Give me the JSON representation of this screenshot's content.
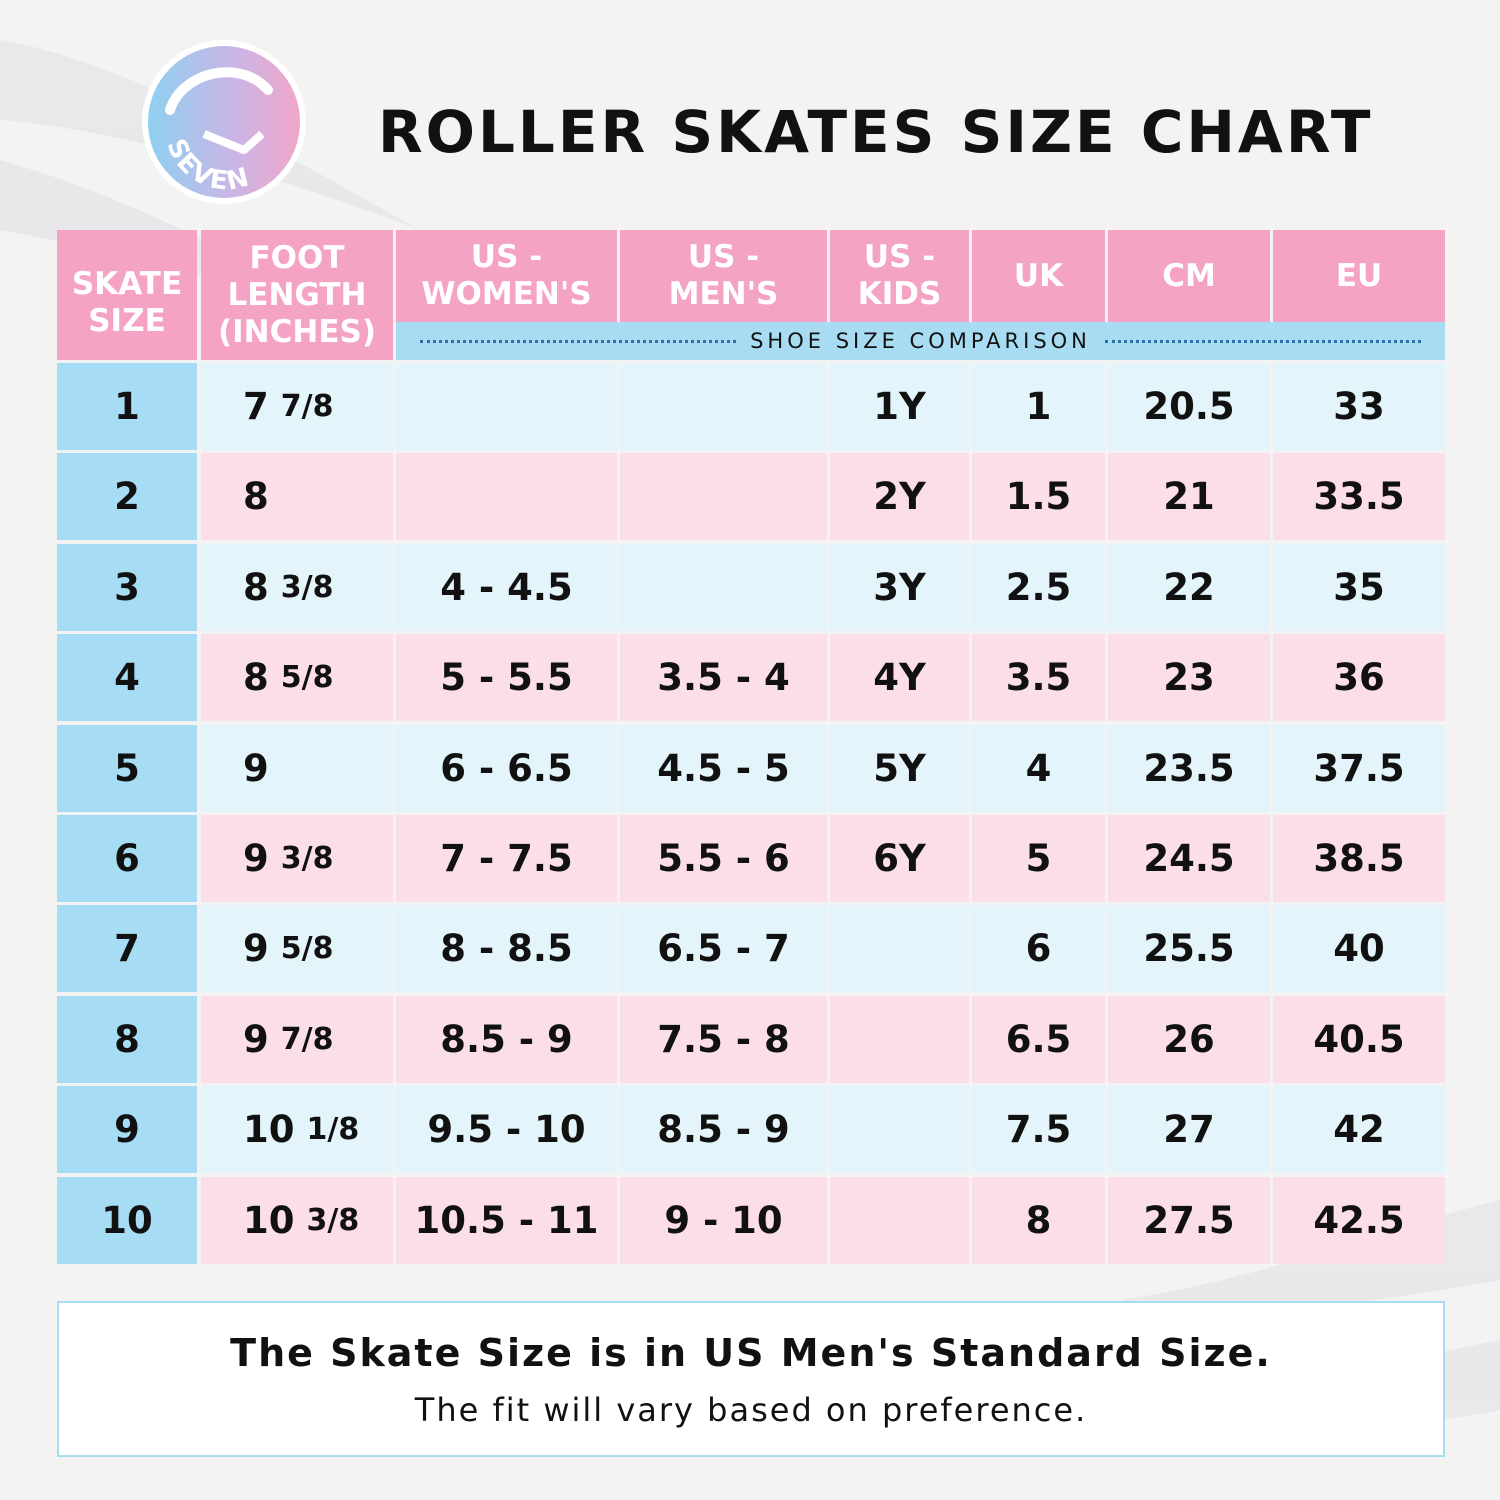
{
  "brand": {
    "logo_text": "SEVEN"
  },
  "title": "ROLLER SKATES SIZE CHART",
  "table": {
    "headers": [
      "SKATE\nSIZE",
      "FOOT\nLENGTH\n(INCHES)",
      "US -\nWOMEN'S",
      "US -\nMEN'S",
      "US -\nKIDS",
      "UK",
      "CM",
      "EU"
    ],
    "shoe_size_comparison_label": "SHOE SIZE COMPARISON",
    "rows": [
      {
        "skate": "1",
        "foot_whole": "7",
        "foot_frac": "7/8",
        "us_women": "",
        "us_men": "",
        "us_kids": "1Y",
        "uk": "1",
        "cm": "20.5",
        "eu": "33"
      },
      {
        "skate": "2",
        "foot_whole": "8",
        "foot_frac": "",
        "us_women": "",
        "us_men": "",
        "us_kids": "2Y",
        "uk": "1.5",
        "cm": "21",
        "eu": "33.5"
      },
      {
        "skate": "3",
        "foot_whole": "8",
        "foot_frac": "3/8",
        "us_women": "4 - 4.5",
        "us_men": "",
        "us_kids": "3Y",
        "uk": "2.5",
        "cm": "22",
        "eu": "35"
      },
      {
        "skate": "4",
        "foot_whole": "8",
        "foot_frac": "5/8",
        "us_women": "5 - 5.5",
        "us_men": "3.5 - 4",
        "us_kids": "4Y",
        "uk": "3.5",
        "cm": "23",
        "eu": "36"
      },
      {
        "skate": "5",
        "foot_whole": "9",
        "foot_frac": "",
        "us_women": "6 - 6.5",
        "us_men": "4.5 - 5",
        "us_kids": "5Y",
        "uk": "4",
        "cm": "23.5",
        "eu": "37.5"
      },
      {
        "skate": "6",
        "foot_whole": "9",
        "foot_frac": "3/8",
        "us_women": "7 - 7.5",
        "us_men": "5.5 - 6",
        "us_kids": "6Y",
        "uk": "5",
        "cm": "24.5",
        "eu": "38.5"
      },
      {
        "skate": "7",
        "foot_whole": "9",
        "foot_frac": "5/8",
        "us_women": "8 - 8.5",
        "us_men": "6.5 - 7",
        "us_kids": "",
        "uk": "6",
        "cm": "25.5",
        "eu": "40"
      },
      {
        "skate": "8",
        "foot_whole": "9",
        "foot_frac": "7/8",
        "us_women": "8.5 - 9",
        "us_men": "7.5 - 8",
        "us_kids": "",
        "uk": "6.5",
        "cm": "26",
        "eu": "40.5"
      },
      {
        "skate": "9",
        "foot_whole": "10",
        "foot_frac": "1/8",
        "us_women": "9.5 - 10",
        "us_men": "8.5 - 9",
        "us_kids": "",
        "uk": "7.5",
        "cm": "27",
        "eu": "42"
      },
      {
        "skate": "10",
        "foot_whole": "10",
        "foot_frac": "3/8",
        "us_women": "10.5 - 11",
        "us_men": "9 - 10",
        "us_kids": "",
        "uk": "8",
        "cm": "27.5",
        "eu": "42.5"
      }
    ]
  },
  "note": {
    "line1": "The Skate Size is in US Men's Standard Size.",
    "line2": "The fit will vary based on preference."
  },
  "colors": {
    "header_pink": "#f4a3c5",
    "comparison_blue": "#a8dcf3",
    "row_blue": "#e3f4fb",
    "row_pink": "#fcdeeb",
    "skate_col_blue": "#a6dcf4"
  }
}
